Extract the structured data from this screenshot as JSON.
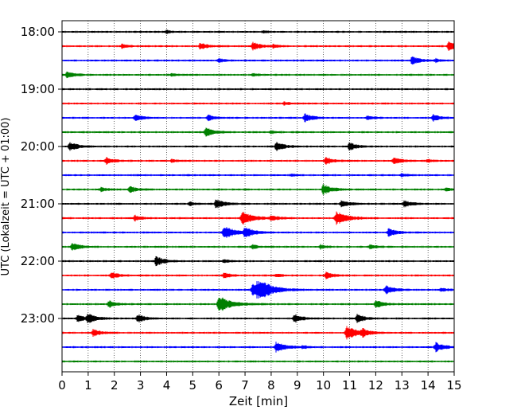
{
  "chart_data": {
    "type": "line",
    "title": "",
    "xlabel": "Zeit  [min]",
    "ylabel": "UTC (Lokalzeit = UTC + 01:00)",
    "xlim": [
      0,
      15
    ],
    "x_ticks": [
      "0",
      "1",
      "2",
      "3",
      "4",
      "5",
      "6",
      "7",
      "8",
      "9",
      "10",
      "11",
      "12",
      "13",
      "14",
      "15"
    ],
    "y_ticks": [
      "18:00",
      "19:00",
      "20:00",
      "21:00",
      "22:00",
      "23:00"
    ],
    "grid": "vertical dotted at each minute",
    "colors": [
      "#000000",
      "#ff0000",
      "#0000ff",
      "#008000"
    ],
    "series": [
      {
        "name": "18:00",
        "color": "#000000",
        "events": [
          [
            4.0,
            0.4
          ],
          [
            7.7,
            0.3
          ]
        ]
      },
      {
        "name": "18:15",
        "color": "#ff0000",
        "events": [
          [
            2.3,
            0.6
          ],
          [
            5.3,
            1.0
          ],
          [
            7.3,
            1.2
          ],
          [
            8.1,
            0.5
          ],
          [
            14.8,
            1.3
          ]
        ]
      },
      {
        "name": "18:30",
        "color": "#0000ff",
        "events": [
          [
            6.0,
            0.6
          ],
          [
            13.4,
            1.2
          ],
          [
            14.3,
            0.4
          ]
        ]
      },
      {
        "name": "18:45",
        "color": "#008000",
        "events": [
          [
            0.2,
            1.0
          ],
          [
            4.2,
            0.4
          ],
          [
            7.3,
            0.4
          ]
        ]
      },
      {
        "name": "19:00",
        "color": "#000000",
        "events": []
      },
      {
        "name": "19:15",
        "color": "#ff0000",
        "events": [
          [
            8.5,
            0.4
          ]
        ]
      },
      {
        "name": "19:30",
        "color": "#0000ff",
        "events": [
          [
            2.8,
            1.0
          ],
          [
            5.6,
            0.8
          ],
          [
            9.3,
            1.2
          ],
          [
            11.7,
            0.6
          ],
          [
            14.2,
            1.0
          ]
        ]
      },
      {
        "name": "19:45",
        "color": "#008000",
        "events": [
          [
            5.5,
            1.3
          ],
          [
            8.0,
            0.4
          ]
        ]
      },
      {
        "name": "20:00",
        "color": "#000000",
        "events": [
          [
            0.3,
            1.3
          ],
          [
            8.2,
            1.3
          ],
          [
            11.0,
            1.1
          ]
        ]
      },
      {
        "name": "20:15",
        "color": "#ff0000",
        "events": [
          [
            1.7,
            1.0
          ],
          [
            4.2,
            0.4
          ],
          [
            10.1,
            1.0
          ],
          [
            12.7,
            1.0
          ],
          [
            14.0,
            0.4
          ]
        ]
      },
      {
        "name": "20:30",
        "color": "#0000ff",
        "events": [
          [
            8.8,
            0.4
          ],
          [
            13.0,
            0.4
          ]
        ]
      },
      {
        "name": "20:45",
        "color": "#008000",
        "events": [
          [
            1.5,
            0.6
          ],
          [
            2.6,
            1.0
          ],
          [
            10.0,
            1.5
          ],
          [
            14.7,
            0.5
          ]
        ]
      },
      {
        "name": "21:00",
        "color": "#000000",
        "events": [
          [
            4.9,
            0.5
          ],
          [
            5.9,
            1.3
          ],
          [
            10.7,
            1.0
          ],
          [
            13.1,
            1.0
          ]
        ]
      },
      {
        "name": "21:15",
        "color": "#ff0000",
        "events": [
          [
            2.8,
            0.8
          ],
          [
            6.9,
            2.0
          ],
          [
            8.0,
            0.8
          ],
          [
            10.5,
            2.0
          ]
        ]
      },
      {
        "name": "21:30",
        "color": "#0000ff",
        "events": [
          [
            6.2,
            2.0
          ],
          [
            7.0,
            1.5
          ],
          [
            12.5,
            1.2
          ]
        ]
      },
      {
        "name": "21:45",
        "color": "#008000",
        "events": [
          [
            0.4,
            1.2
          ],
          [
            7.3,
            0.6
          ],
          [
            9.9,
            0.6
          ],
          [
            11.8,
            0.6
          ]
        ]
      },
      {
        "name": "22:00",
        "color": "#000000",
        "events": [
          [
            3.6,
            1.4
          ],
          [
            6.2,
            0.5
          ]
        ]
      },
      {
        "name": "22:15",
        "color": "#ff0000",
        "events": [
          [
            1.9,
            1.0
          ],
          [
            6.2,
            0.8
          ],
          [
            8.2,
            0.5
          ],
          [
            10.1,
            1.0
          ]
        ]
      },
      {
        "name": "22:30",
        "color": "#0000ff",
        "events": [
          [
            7.5,
            2.8
          ],
          [
            7.3,
            2.0
          ],
          [
            12.4,
            1.2
          ],
          [
            14.5,
            0.6
          ]
        ]
      },
      {
        "name": "22:45",
        "color": "#008000",
        "events": [
          [
            1.8,
            1.0
          ],
          [
            6.0,
            2.5
          ],
          [
            12.0,
            1.2
          ]
        ]
      },
      {
        "name": "23:00",
        "color": "#000000",
        "events": [
          [
            0.6,
            1.0
          ],
          [
            1.0,
            1.3
          ],
          [
            2.9,
            1.2
          ],
          [
            8.9,
            1.2
          ],
          [
            11.3,
            1.2
          ]
        ]
      },
      {
        "name": "23:15",
        "color": "#ff0000",
        "events": [
          [
            1.2,
            1.0
          ],
          [
            10.9,
            2.0
          ],
          [
            11.5,
            1.0
          ]
        ]
      },
      {
        "name": "23:30",
        "color": "#0000ff",
        "events": [
          [
            8.2,
            1.5
          ],
          [
            9.2,
            0.4
          ],
          [
            14.3,
            1.3
          ]
        ]
      },
      {
        "name": "23:45",
        "color": "#008000",
        "events": []
      }
    ]
  }
}
